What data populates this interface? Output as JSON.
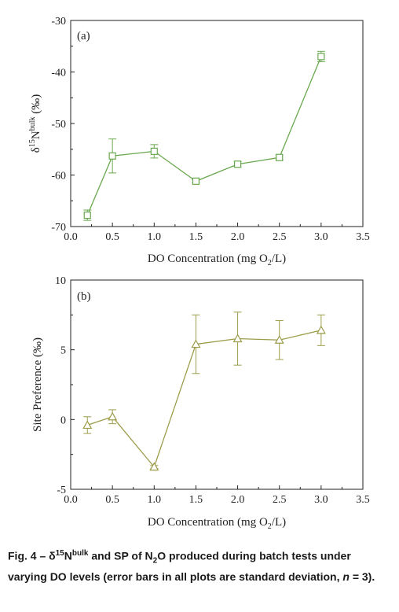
{
  "chart_data": [
    {
      "type": "line",
      "marker": "square",
      "color": "#6aa84f",
      "panel_label": "(a)",
      "xlabel": "DO Concentration (mg O2/L)",
      "ylabel": "δ15Nbulk (‰)",
      "xlim": [
        0.0,
        3.5
      ],
      "ylim": [
        -70,
        -30
      ],
      "xticks": [
        0.0,
        0.5,
        1.0,
        1.5,
        2.0,
        2.5,
        3.0,
        3.5
      ],
      "xtick_labels": [
        "0.0",
        "0.5",
        "1.0",
        "1.5",
        "2.0",
        "2.5",
        "3.0",
        "3.5"
      ],
      "yticks": [
        -70,
        -60,
        -50,
        -40,
        -30
      ],
      "ytick_labels": [
        "-70",
        "-60",
        "-50",
        "-40",
        "-30"
      ],
      "x": [
        0.2,
        0.5,
        1.0,
        1.5,
        2.0,
        2.5,
        3.0
      ],
      "y": [
        -67.8,
        -56.3,
        -55.4,
        -61.2,
        -57.9,
        -56.6,
        -37.0
      ],
      "error": [
        1.0,
        3.3,
        1.3,
        0.3,
        0.5,
        0.5,
        1.0
      ]
    },
    {
      "type": "line",
      "marker": "triangle",
      "color": "#9c9c4a",
      "panel_label": "(b)",
      "xlabel": "DO Concentration (mg O2/L)",
      "ylabel": "Site Preference (‰)",
      "xlim": [
        0.0,
        3.5
      ],
      "ylim": [
        -5,
        10
      ],
      "xticks": [
        0.0,
        0.5,
        1.0,
        1.5,
        2.0,
        2.5,
        3.0,
        3.5
      ],
      "xtick_labels": [
        "0.0",
        "0.5",
        "1.0",
        "1.5",
        "2.0",
        "2.5",
        "3.0",
        "3.5"
      ],
      "yticks": [
        -5,
        0,
        5,
        10
      ],
      "ytick_labels": [
        "-5",
        "0",
        "5",
        "10"
      ],
      "x": [
        0.2,
        0.5,
        1.0,
        1.5,
        2.0,
        2.5,
        3.0
      ],
      "y": [
        -0.4,
        0.2,
        -3.4,
        5.4,
        5.8,
        5.7,
        6.4
      ],
      "error": [
        0.6,
        0.5,
        0.1,
        2.1,
        1.9,
        1.4,
        1.1
      ]
    }
  ],
  "caption": "Fig. 4 – δ15Nbulk and SP of N2O produced during batch tests under varying DO levels (error bars in all plots are standard deviation, n = 3)."
}
